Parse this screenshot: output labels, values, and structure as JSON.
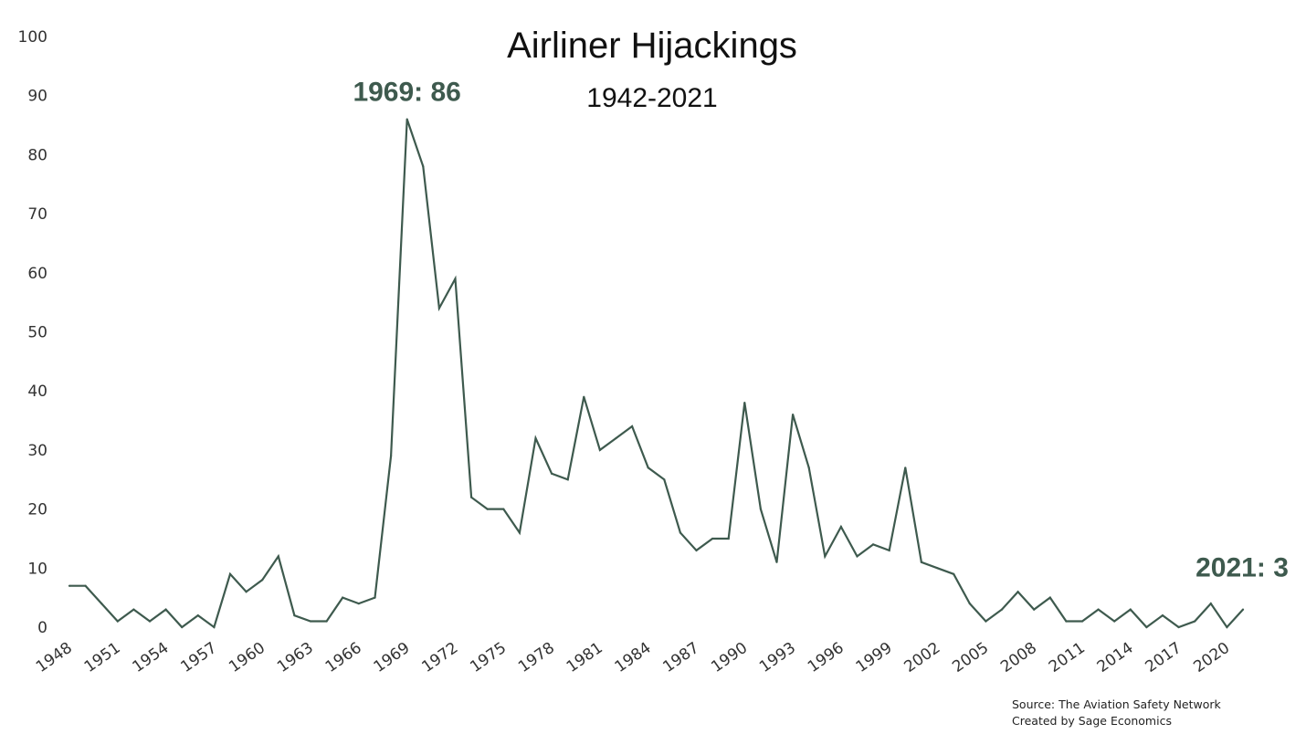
{
  "chart_data": {
    "type": "line",
    "title": "Airliner Hijackings",
    "subtitle": "1942-2021",
    "xlabel": "",
    "ylabel": "",
    "ylim": [
      0,
      100
    ],
    "xlim": [
      1948,
      2021
    ],
    "grid": false,
    "line_color": "#3e5a4e",
    "y_ticks": [
      "0",
      "10",
      "20",
      "30",
      "40",
      "50",
      "60",
      "70",
      "80",
      "90",
      "100"
    ],
    "x_ticks": [
      "1948",
      "1951",
      "1954",
      "1957",
      "1960",
      "1963",
      "1966",
      "1969",
      "1972",
      "1975",
      "1978",
      "1981",
      "1984",
      "1987",
      "1990",
      "1993",
      "1996",
      "1999",
      "2002",
      "2005",
      "2008",
      "2011",
      "2014",
      "2017",
      "2020"
    ],
    "series": [
      {
        "x": [
          1948,
          1949,
          1950,
          1951,
          1952,
          1953,
          1954,
          1955,
          1956,
          1957,
          1958,
          1959,
          1960,
          1961,
          1962,
          1963,
          1964,
          1965,
          1966,
          1967,
          1968,
          1969,
          1970,
          1971,
          1972,
          1973,
          1974,
          1975,
          1976,
          1977,
          1978,
          1979,
          1980,
          1981,
          1982,
          1983,
          1984,
          1985,
          1986,
          1987,
          1988,
          1989,
          1990,
          1991,
          1992,
          1993,
          1994,
          1995,
          1996,
          1997,
          1998,
          1999,
          2000,
          2001,
          2002,
          2003,
          2004,
          2005,
          2006,
          2007,
          2008,
          2009,
          2010,
          2011,
          2012,
          2013,
          2014,
          2015,
          2016,
          2017,
          2018,
          2019,
          2020,
          2021
        ],
        "values": [
          7,
          7,
          4,
          1,
          3,
          1,
          3,
          0,
          2,
          0,
          9,
          6,
          8,
          12,
          2,
          1,
          1,
          5,
          4,
          5,
          29,
          86,
          78,
          54,
          59,
          22,
          20,
          20,
          16,
          32,
          26,
          25,
          39,
          30,
          32,
          34,
          27,
          25,
          16,
          13,
          15,
          15,
          38,
          20,
          11,
          36,
          27,
          12,
          17,
          12,
          14,
          13,
          27,
          11,
          10,
          9,
          4,
          1,
          3,
          6,
          3,
          5,
          1,
          1,
          3,
          1,
          3,
          0,
          2,
          0,
          1,
          4,
          0,
          3
        ]
      }
    ],
    "annotations": [
      {
        "text": "1969: 86",
        "x": 1969,
        "y": 86
      },
      {
        "text": "2021: 3",
        "x": 2021,
        "y": 3
      }
    ]
  },
  "source": {
    "line1": "Source: The Aviation Safety Network",
    "line2": "Created by Sage Economics"
  }
}
